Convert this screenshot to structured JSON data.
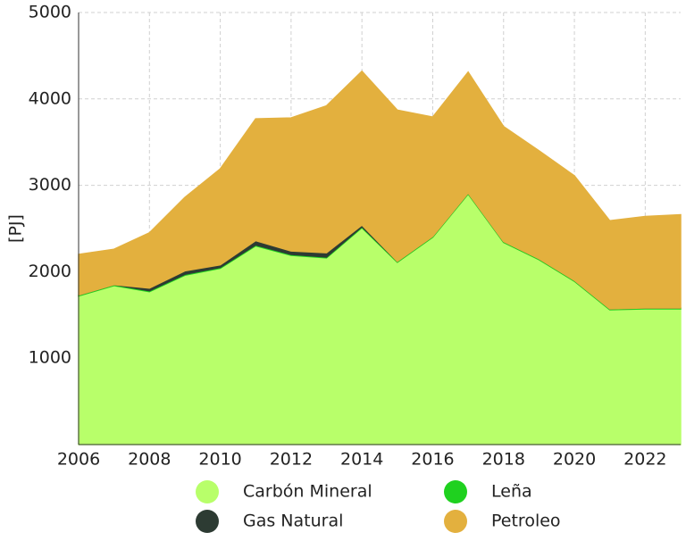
{
  "chart_data": {
    "type": "stacked_area",
    "x": [
      2006,
      2007,
      2008,
      2009,
      2010,
      2011,
      2012,
      2013,
      2014,
      2015,
      2016,
      2017,
      2018,
      2019,
      2020,
      2021,
      2022,
      2023
    ],
    "series": [
      {
        "name": "Carbón Mineral",
        "color": "#b8ff6a",
        "values": [
          1720,
          1840,
          1770,
          1960,
          2040,
          2300,
          2190,
          2160,
          2510,
          2110,
          2400,
          2900,
          2340,
          2140,
          1890,
          1560,
          1570,
          1570
        ]
      },
      {
        "name": "Leña",
        "color": "#1fd11f",
        "values": [
          10,
          10,
          10,
          10,
          10,
          10,
          10,
          10,
          10,
          10,
          10,
          10,
          10,
          10,
          10,
          10,
          10,
          10
        ]
      },
      {
        "name": "Gas Natural",
        "color": "#2d3b33",
        "values": [
          0,
          0,
          30,
          40,
          30,
          50,
          40,
          50,
          20,
          0,
          0,
          0,
          0,
          0,
          0,
          0,
          0,
          0
        ]
      },
      {
        "name": "Petroleo",
        "color": "#e3b03e",
        "values": [
          470,
          410,
          640,
          850,
          1110,
          1410,
          1540,
          1700,
          1780,
          1750,
          1380,
          1400,
          1330,
          1250,
          1210,
          1020,
          1060,
          1080
        ]
      }
    ],
    "ylabel": "[PJ]",
    "xlim": [
      2006,
      2023
    ],
    "xticks": [
      2006,
      2008,
      2010,
      2012,
      2014,
      2016,
      2018,
      2020,
      2022
    ],
    "ylim": [
      0,
      5000
    ],
    "yticks": [
      1000,
      2000,
      3000,
      4000,
      5000
    ],
    "grid": true
  }
}
